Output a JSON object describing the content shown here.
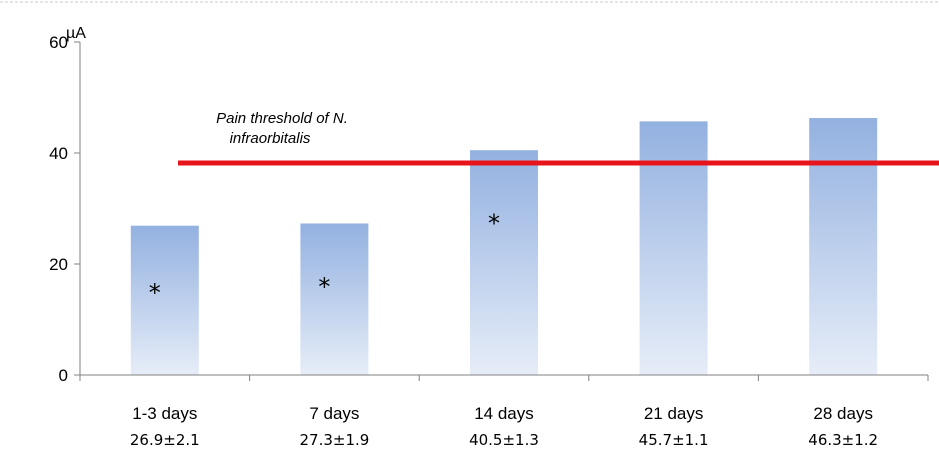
{
  "chart_data": {
    "type": "bar",
    "ylabel": "µA",
    "ylim": [
      0,
      60
    ],
    "yticks": [
      "0",
      "20",
      "40",
      "60"
    ],
    "categories": [
      "1-3 days",
      "7 days",
      "14 days",
      "21 days",
      "28 days"
    ],
    "values": [
      26.9,
      27.3,
      40.5,
      45.7,
      46.3
    ],
    "value_labels": [
      "26.9±2.1",
      "27.3±1.9",
      "40.5±1.3",
      "45.7±1.1",
      "46.3±1.2"
    ],
    "significance": [
      {
        "category_index": 0,
        "mark": "*",
        "y": 15
      },
      {
        "category_index": 1,
        "mark": "*",
        "y": 16
      },
      {
        "category_index": 2,
        "mark": "*",
        "y": 27.5
      }
    ],
    "reference_line": {
      "label_line1": "Pain threshold of N.",
      "label_line2": "infraorbitalis",
      "value": 38.2,
      "color": "#e8141c"
    },
    "bar_color_top": "#93b1e0",
    "bar_color_bottom": "#e6edf8",
    "grid": false
  }
}
